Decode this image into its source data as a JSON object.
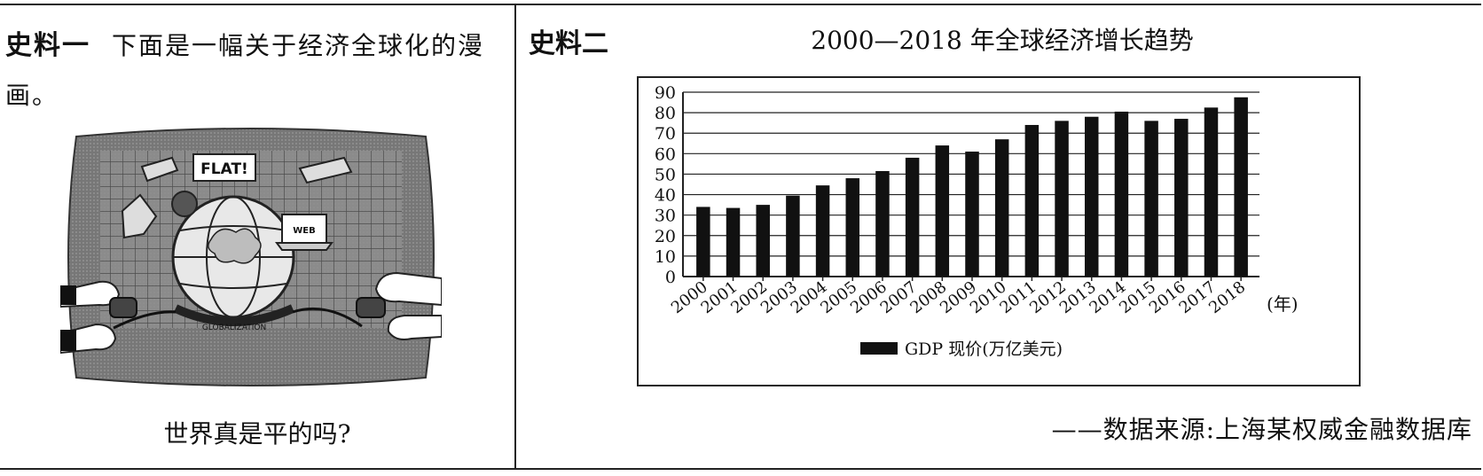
{
  "left": {
    "label": "史料一",
    "text": "下面是一幅关于经济全球化的漫画。",
    "caption": "世界真是平的吗?",
    "cartoon_texts": {
      "flat": "FLAT!",
      "globe": "GLOBALIZATION",
      "screen": "WEB"
    }
  },
  "right": {
    "label": "史料二",
    "source": "——数据来源:上海某权威金融数据库"
  },
  "chart_data": {
    "type": "bar",
    "title": "2000—2018 年全球经济增长趋势",
    "categories": [
      "2000",
      "2001",
      "2002",
      "2003",
      "2004",
      "2005",
      "2006",
      "2007",
      "2008",
      "2009",
      "2010",
      "2011",
      "2012",
      "2013",
      "2014",
      "2015",
      "2016",
      "2017",
      "2018"
    ],
    "series": [
      {
        "name": "GDP 现价(万亿美元)",
        "values": [
          34,
          33.5,
          35,
          39.5,
          44.5,
          48,
          51.5,
          58,
          64,
          61,
          67,
          74,
          76,
          78,
          80.5,
          76,
          77,
          82.5,
          87.5
        ],
        "color": "#111111"
      }
    ],
    "ylim": [
      0,
      90
    ],
    "yticks": [
      0,
      10,
      20,
      30,
      40,
      50,
      60,
      70,
      80,
      90
    ],
    "xunit": "(年)",
    "grid": true,
    "legend": "bottom"
  }
}
